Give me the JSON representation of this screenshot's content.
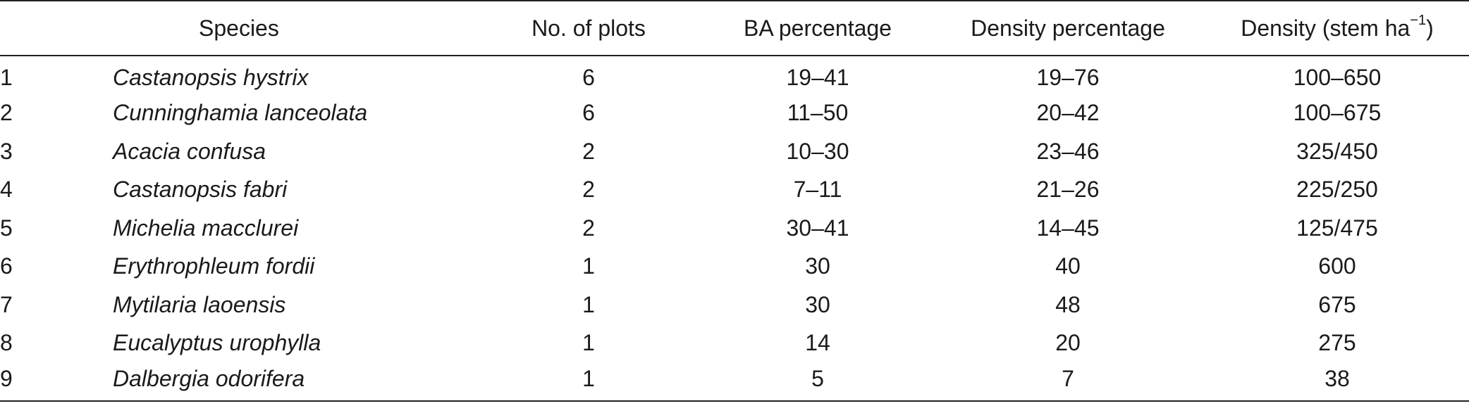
{
  "headers": {
    "number": "",
    "species": "Species",
    "plots": "No. of plots",
    "ba": "BA percentage",
    "density_pct": "Density percentage",
    "density_base": "Density (stem ha",
    "density_sup": "−1",
    "density_close": ")"
  },
  "rows": [
    {
      "num": "1",
      "species": "Castanopsis hystrix",
      "plots": "6",
      "ba": "19–41",
      "density_pct": "19–76",
      "density": "100–650"
    },
    {
      "num": "2",
      "species": "Cunninghamia lanceolata",
      "plots": "6",
      "ba": "11–50",
      "density_pct": "20–42",
      "density": "100–675"
    },
    {
      "num": "3",
      "species": "Acacia confusa",
      "plots": "2",
      "ba": "10–30",
      "density_pct": "23–46",
      "density": "325/450"
    },
    {
      "num": "4",
      "species": "Castanopsis fabri",
      "plots": "2",
      "ba": "7–11",
      "density_pct": "21–26",
      "density": "225/250"
    },
    {
      "num": "5",
      "species": "Michelia macclurei",
      "plots": "2",
      "ba": "30–41",
      "density_pct": "14–45",
      "density": "125/475"
    },
    {
      "num": "6",
      "species": "Erythrophleum fordii",
      "plots": "1",
      "ba": "30",
      "density_pct": "40",
      "density": "600"
    },
    {
      "num": "7",
      "species": "Mytilaria laoensis",
      "plots": "1",
      "ba": "30",
      "density_pct": "48",
      "density": "675"
    },
    {
      "num": "8",
      "species": "Eucalyptus urophylla",
      "plots": "1",
      "ba": "14",
      "density_pct": "20",
      "density": "275"
    },
    {
      "num": "9",
      "species": "Dalbergia odorifera",
      "plots": "1",
      "ba": "5",
      "density_pct": "7",
      "density": "38"
    }
  ]
}
